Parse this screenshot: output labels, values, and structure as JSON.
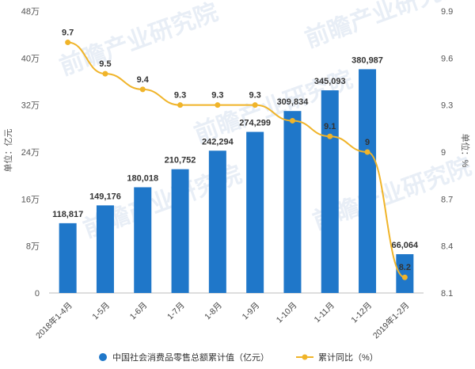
{
  "chart_data": {
    "type": "bar+line",
    "categories": [
      "2018年1-4月",
      "1-5月",
      "1-6月",
      "1-7月",
      "1-8月",
      "1-9月",
      "1-10月",
      "1-11月",
      "1-12月",
      "2019年1-2月"
    ],
    "series": [
      {
        "name": "中国社会消费品零售总额累计值（亿元）",
        "type": "bar",
        "axis": "left",
        "color": "#1f77c9",
        "values": [
          118817,
          149176,
          180018,
          210752,
          242294,
          274299,
          309834,
          345093,
          380987,
          66064
        ],
        "labels": [
          "118,817",
          "149,176",
          "180,018",
          "210,752",
          "242,294",
          "274,299",
          "309,834",
          "345,093",
          "380,987",
          "66,064"
        ]
      },
      {
        "name": "累计同比（%）",
        "type": "line",
        "axis": "right",
        "color": "#f0b429",
        "values": [
          9.7,
          9.5,
          9.4,
          9.3,
          9.3,
          9.3,
          9.2,
          9.1,
          9.0,
          8.2
        ],
        "labels": [
          "9.7",
          "9.5",
          "9.4",
          "9.3",
          "9.3",
          "9.3",
          "",
          "9.1",
          "9",
          "8.2"
        ]
      }
    ],
    "left_axis": {
      "label": "单位：亿元",
      "range": [
        0,
        480000
      ],
      "ticks": [
        0,
        80000,
        160000,
        240000,
        320000,
        400000,
        480000
      ],
      "tick_labels": [
        "0",
        "8万",
        "16万",
        "24万",
        "32万",
        "40万",
        "48万"
      ]
    },
    "right_axis": {
      "label": "单位：%",
      "range": [
        8.1,
        9.9
      ],
      "ticks": [
        8.1,
        8.4,
        8.7,
        9.0,
        9.3,
        9.6,
        9.9
      ],
      "tick_labels": [
        "8.1",
        "8.4",
        "8.7",
        "9",
        "9.3",
        "9.6",
        "9.9"
      ]
    },
    "grid": false,
    "legend_position": "bottom",
    "watermark": "前瞻产业研究院"
  }
}
